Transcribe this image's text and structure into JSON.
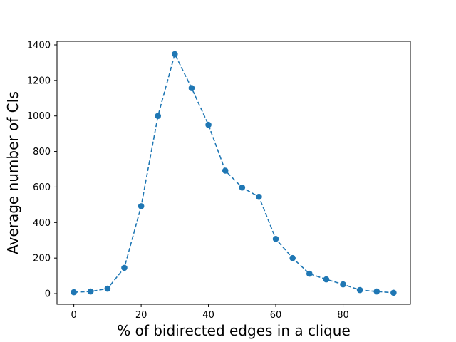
{
  "chart_data": {
    "type": "line",
    "title": "",
    "xlabel": "% of bidirected edges in a clique",
    "ylabel": "Average number of CIs",
    "xlim": [
      -5,
      100
    ],
    "ylim": [
      -60,
      1420
    ],
    "xticks": [
      0,
      20,
      40,
      60,
      80
    ],
    "yticks": [
      0,
      200,
      400,
      600,
      800,
      1000,
      1200,
      1400
    ],
    "grid": false,
    "legend": "none",
    "series": [
      {
        "color": "#1f77b4",
        "line_style": "dashed",
        "marker": "circle",
        "x": [
          0,
          5,
          10,
          15,
          20,
          25,
          30,
          35,
          40,
          45,
          50,
          55,
          60,
          65,
          70,
          75,
          80,
          85,
          90,
          95
        ],
        "y": [
          8,
          12,
          28,
          145,
          492,
          1000,
          1348,
          1157,
          950,
          692,
          597,
          545,
          308,
          200,
          112,
          80,
          52,
          20,
          12,
          5
        ]
      }
    ]
  }
}
